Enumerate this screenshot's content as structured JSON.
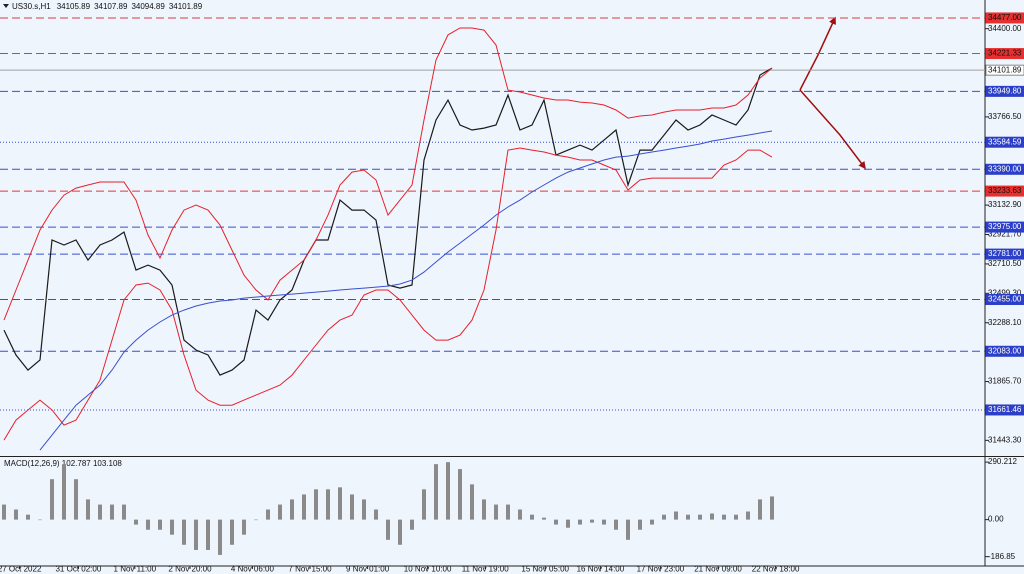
{
  "header": {
    "symbol": "US30.s,H1",
    "ohlc": [
      34105.89,
      34107.89,
      34094.89,
      34101.89
    ]
  },
  "chart_data": [
    {
      "type": "line",
      "x": [
        0,
        1,
        2,
        3,
        4,
        5,
        6,
        7,
        8,
        9,
        10,
        11,
        12,
        13,
        14,
        15,
        16,
        17,
        18,
        19,
        20,
        21,
        22,
        23,
        24,
        25,
        26,
        27,
        28,
        29,
        30,
        31,
        32,
        33,
        34,
        35,
        36,
        37,
        38,
        39,
        40,
        41,
        42,
        43,
        44,
        45,
        46,
        47,
        48,
        49,
        50,
        51,
        52,
        53,
        54,
        55,
        56,
        57,
        58,
        59,
        60,
        61,
        62,
        63,
        64
      ],
      "series": [
        {
          "color": "#1a1a1a",
          "values": [
            32235,
            32056,
            31948,
            32020,
            32882,
            32846,
            32882,
            32738,
            32846,
            32882,
            32939,
            32666,
            32702,
            32666,
            32559,
            32163,
            32092,
            32056,
            31912,
            31948,
            32020,
            32379,
            32307,
            32451,
            32523,
            32738,
            32882,
            32882,
            33169,
            33097,
            33097,
            33025,
            32559,
            32537,
            32559,
            33456,
            33744,
            33887,
            33708,
            33672,
            33686,
            33708,
            33923,
            33672,
            33708,
            33887,
            33492,
            33528,
            33564,
            33528,
            33600,
            33672,
            33277,
            33528,
            33528,
            33636,
            33744,
            33672,
            33708,
            33780,
            33744,
            33708,
            33816,
            34067,
            34117
          ]
        },
        {
          "color": "#e8202a",
          "values": [
            32307,
            32523,
            32738,
            32954,
            33097,
            33205,
            33255,
            33277,
            33299,
            33299,
            33299,
            33169,
            32918,
            32753,
            32954,
            33097,
            33133,
            33097,
            32990,
            32810,
            32630,
            32523,
            32451,
            32594,
            32666,
            32738,
            32882,
            33061,
            33277,
            33370,
            33385,
            33313,
            33061,
            33169,
            33277,
            33744,
            34175,
            34355,
            34405,
            34405,
            34390,
            34283,
            33959,
            33945,
            33924,
            33902,
            33888,
            33888,
            33873,
            33866,
            33852,
            33816,
            33758,
            33773,
            33780,
            33801,
            33816,
            33816,
            33816,
            33830,
            33830,
            33852,
            33924,
            34046,
            34117
          ]
        },
        {
          "color": "#e8202a",
          "values": [
            31445,
            31589,
            31661,
            31732,
            31661,
            31553,
            31589,
            31732,
            31876,
            32163,
            32451,
            32559,
            32573,
            32523,
            32379,
            32056,
            31804,
            31732,
            31696,
            31696,
            31732,
            31768,
            31804,
            31840,
            31912,
            32020,
            32128,
            32235,
            32307,
            32343,
            32487,
            32523,
            32523,
            32451,
            32343,
            32235,
            32163,
            32163,
            32199,
            32307,
            32523,
            32954,
            33528,
            33543,
            33528,
            33514,
            33492,
            33478,
            33457,
            33457,
            33421,
            33385,
            33241,
            33313,
            33327,
            33327,
            33327,
            33327,
            33327,
            33327,
            33421,
            33457,
            33528,
            33528,
            33478
          ]
        },
        {
          "color": "#3a4fd0",
          "values": [
            null,
            null,
            null,
            31373,
            31481,
            31589,
            31696,
            31768,
            31840,
            31948,
            32077,
            32163,
            32235,
            32293,
            32343,
            32379,
            32408,
            32429,
            32444,
            32451,
            32465,
            32472,
            32480,
            32487,
            32494,
            32501,
            32508,
            32515,
            32523,
            32530,
            32537,
            32544,
            32551,
            32566,
            32594,
            32652,
            32724,
            32796,
            32860,
            32925,
            32990,
            33061,
            33119,
            33169,
            33227,
            33277,
            33327,
            33370,
            33399,
            33428,
            33457,
            33478,
            33485,
            33500,
            33514,
            33528,
            33543,
            33557,
            33572,
            33593,
            33607,
            33622,
            33636,
            33651,
            33665
          ]
        }
      ],
      "levels": [
        {
          "value": 34477,
          "label": "34477.00",
          "color": "#e03a3a",
          "style": "dashed",
          "fill": "#e63030",
          "text_color": "#111"
        },
        {
          "value": 34221.33,
          "label": "34221.33",
          "color": "#e03a3a",
          "style": "dashed",
          "fill": "#e63030",
          "text_color": "#111"
        },
        {
          "value": 34101.89,
          "label": "34101.89",
          "color": "#a0a0a0",
          "style": "solid",
          "fill": "#ffffff",
          "text_color": "#111"
        },
        {
          "value": 33949.8,
          "label": "33949.80",
          "color": "#3a4fd0",
          "style": "dashed",
          "fill": "#2b3fc8",
          "text_color": "#fff"
        },
        {
          "value": 33584.59,
          "label": "33584.59",
          "color": "#3a4fd0",
          "style": "dotted",
          "fill": "#2b3fc8",
          "text_color": "#fff"
        },
        {
          "value": 33390,
          "label": "33390.00",
          "color": "#3a4fd0",
          "style": "dashed",
          "fill": "#2b3fc8",
          "text_color": "#fff"
        },
        {
          "value": 33233.63,
          "label": "33233.63",
          "color": "#e03a3a",
          "style": "dashed",
          "fill": "#e63030",
          "text_color": "#111"
        },
        {
          "value": 32975,
          "label": "32975.00",
          "color": "#3a4fd0",
          "style": "dashed",
          "fill": "#2b3fc8",
          "text_color": "#fff"
        },
        {
          "value": 32781,
          "label": "32781.00",
          "color": "#3a4fd0",
          "style": "dashed",
          "fill": "#2b3fc8",
          "text_color": "#fff"
        },
        {
          "value": 32455,
          "label": "32455.00",
          "color": "#3a4fd0",
          "style": "dashed",
          "fill": "#2b3fc8",
          "text_color": "#fff"
        },
        {
          "value": 32083,
          "label": "32083.00",
          "color": "#3a4fd0",
          "style": "dashed",
          "fill": "#2b3fc8",
          "text_color": "#fff"
        },
        {
          "value": 31661.46,
          "label": "31661.46",
          "color": "#3a4fd0",
          "style": "dotted",
          "fill": "#2b3fc8",
          "text_color": "#fff"
        }
      ],
      "ylim": [
        31338,
        34606
      ],
      "yticks": [
        {
          "value": 34400,
          "label": "34400.00"
        },
        {
          "value": 33766.5,
          "label": "33766.50"
        },
        {
          "value": 33132.9,
          "label": "33132.90"
        },
        {
          "value": 32921.7,
          "label": "32921.70"
        },
        {
          "value": 32710.5,
          "label": "32710.50"
        },
        {
          "value": 32499.3,
          "label": "32499.30"
        },
        {
          "value": 32288.1,
          "label": "32288.10"
        },
        {
          "value": 31865.7,
          "label": "31865.70"
        },
        {
          "value": 31443.3,
          "label": "31443.30"
        }
      ],
      "xlim": [
        -0.333,
        81.75
      ],
      "xticks": [
        {
          "value": 1.3,
          "label": "27 Oct 2022"
        },
        {
          "value": 6.2,
          "label": "31 Oct 02:00"
        },
        {
          "value": 10.9,
          "label": "1 Nov 11:00"
        },
        {
          "value": 15.5,
          "label": "2 Nov 20:00"
        },
        {
          "value": 20.7,
          "label": "4 Nov 06:00"
        },
        {
          "value": 25.5,
          "label": "7 Nov 15:00"
        },
        {
          "value": 30.3,
          "label": "9 Nov 01:00"
        },
        {
          "value": 35.3,
          "label": "10 Nov 10:00"
        },
        {
          "value": 40.1,
          "label": "11 Nov 19:00"
        },
        {
          "value": 45.1,
          "label": "15 Nov 05:00"
        },
        {
          "value": 49.7,
          "label": "16 Nov 14:00"
        },
        {
          "value": 54.7,
          "label": "17 Nov 23:00"
        },
        {
          "value": 59.5,
          "label": "21 Nov 09:00"
        },
        {
          "value": 64.3,
          "label": "22 Nov 18:00"
        }
      ]
    },
    {
      "type": "bar",
      "title": "MACD(12,26,9) 102.787 103.108",
      "color": "#8a8a8a",
      "x": [
        0,
        1,
        2,
        3,
        4,
        5,
        6,
        7,
        8,
        9,
        10,
        11,
        12,
        13,
        14,
        15,
        16,
        17,
        18,
        19,
        20,
        21,
        22,
        23,
        24,
        25,
        26,
        27,
        28,
        29,
        30,
        31,
        32,
        33,
        34,
        35,
        36,
        37,
        38,
        39,
        40,
        41,
        42,
        43,
        44,
        45,
        46,
        47,
        48,
        49,
        50,
        51,
        52,
        53,
        54,
        55,
        56,
        57,
        58,
        59,
        60,
        61,
        62,
        63,
        64
      ],
      "values": [
        76,
        51,
        25,
        0,
        204,
        280,
        204,
        102,
        76,
        76,
        76,
        -25,
        -51,
        -51,
        -76,
        -127,
        -153,
        -153,
        -178,
        -127,
        -76,
        0,
        51,
        76,
        102,
        127,
        153,
        153,
        163,
        127,
        102,
        51,
        -102,
        -127,
        -51,
        153,
        280,
        290,
        255,
        178,
        102,
        76,
        76,
        51,
        25,
        10,
        -25,
        -41,
        -25,
        -15,
        -25,
        -51,
        -102,
        -51,
        -25,
        25,
        41,
        25,
        25,
        31,
        25,
        25,
        41,
        102,
        117
      ],
      "ylim": [
        -234,
        316
      ],
      "yticks": [
        290.212,
        {
          "value": 0,
          "label": "0.00"
        },
        -186.85
      ],
      "xlim": [
        -0.333,
        81.75
      ]
    }
  ]
}
